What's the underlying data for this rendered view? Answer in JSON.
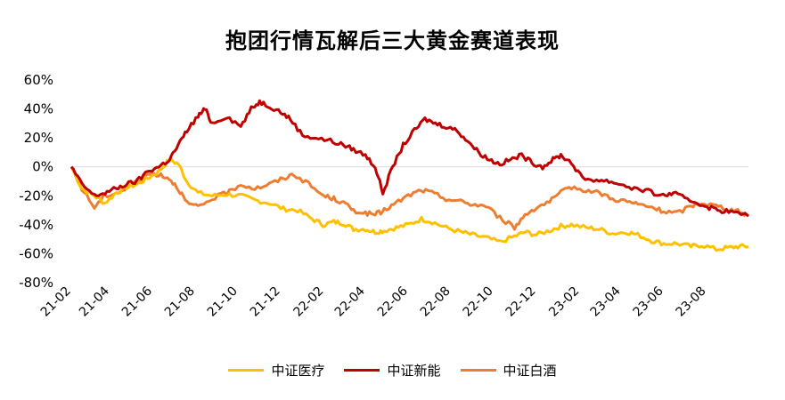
{
  "chart_data": {
    "type": "line",
    "title": "抱团行情瓦解后三大黄金赛道表现",
    "xlabel": "",
    "ylabel": "",
    "ylim": [
      -80,
      60
    ],
    "yticks": [
      60,
      40,
      20,
      0,
      -20,
      -40,
      -60,
      -80
    ],
    "ytick_labels": [
      "60%",
      "40%",
      "20%",
      "0%",
      "-20%",
      "-40%",
      "-60%",
      "-80%"
    ],
    "xticks": [
      "21-02",
      "21-04",
      "21-06",
      "21-08",
      "21-10",
      "21-12",
      "22-02",
      "22-04",
      "22-06",
      "22-08",
      "22-10",
      "22-12",
      "23-02",
      "23-04",
      "23-06",
      "23-08"
    ],
    "x_range": [
      "2021-02-05",
      "2023-09-30"
    ],
    "legend_position": "bottom",
    "grid": false,
    "series": [
      {
        "name": "中证医疗",
        "color": "#FFC000",
        "points": [
          [
            "2021-02-05",
            0
          ],
          [
            "2021-02-20",
            -15
          ],
          [
            "2021-03-10",
            -20
          ],
          [
            "2021-03-25",
            -25
          ],
          [
            "2021-04-10",
            -18
          ],
          [
            "2021-04-25",
            -14
          ],
          [
            "2021-05-10",
            -12
          ],
          [
            "2021-05-25",
            -8
          ],
          [
            "2021-06-10",
            -3
          ],
          [
            "2021-06-25",
            5
          ],
          [
            "2021-07-08",
            2
          ],
          [
            "2021-07-20",
            -10
          ],
          [
            "2021-08-05",
            -18
          ],
          [
            "2021-08-25",
            -20
          ],
          [
            "2021-09-15",
            -19
          ],
          [
            "2021-10-05",
            -20
          ],
          [
            "2021-10-25",
            -23
          ],
          [
            "2021-11-15",
            -25
          ],
          [
            "2021-12-05",
            -29
          ],
          [
            "2021-12-25",
            -30
          ],
          [
            "2022-01-15",
            -36
          ],
          [
            "2022-01-31",
            -40
          ],
          [
            "2022-02-15",
            -38
          ],
          [
            "2022-03-01",
            -39
          ],
          [
            "2022-03-15",
            -43
          ],
          [
            "2022-04-01",
            -43
          ],
          [
            "2022-04-15",
            -45
          ],
          [
            "2022-04-28",
            -44
          ],
          [
            "2022-05-15",
            -42
          ],
          [
            "2022-06-01",
            -40
          ],
          [
            "2022-06-20",
            -36
          ],
          [
            "2022-07-05",
            -38
          ],
          [
            "2022-07-25",
            -42
          ],
          [
            "2022-08-15",
            -45
          ],
          [
            "2022-09-01",
            -47
          ],
          [
            "2022-09-20",
            -49
          ],
          [
            "2022-10-10",
            -52
          ],
          [
            "2022-10-31",
            -48
          ],
          [
            "2022-11-15",
            -45
          ],
          [
            "2022-12-01",
            -47
          ],
          [
            "2022-12-20",
            -44
          ],
          [
            "2023-01-05",
            -41
          ],
          [
            "2023-01-20",
            -40
          ],
          [
            "2023-02-10",
            -42
          ],
          [
            "2023-03-01",
            -43
          ],
          [
            "2023-03-20",
            -46
          ],
          [
            "2023-04-10",
            -45
          ],
          [
            "2023-04-25",
            -47
          ],
          [
            "2023-05-15",
            -51
          ],
          [
            "2023-06-01",
            -53
          ],
          [
            "2023-06-20",
            -53
          ],
          [
            "2023-07-10",
            -55
          ],
          [
            "2023-07-25",
            -54
          ],
          [
            "2023-08-15",
            -57
          ],
          [
            "2023-08-31",
            -56
          ],
          [
            "2023-09-15",
            -55
          ],
          [
            "2023-09-30",
            -55
          ]
        ]
      },
      {
        "name": "中证新能",
        "color": "#C00000",
        "points": [
          [
            "2021-02-05",
            0
          ],
          [
            "2021-02-20",
            -12
          ],
          [
            "2021-03-10",
            -20
          ],
          [
            "2021-03-25",
            -18
          ],
          [
            "2021-04-10",
            -15
          ],
          [
            "2021-04-25",
            -12
          ],
          [
            "2021-05-10",
            -10
          ],
          [
            "2021-05-25",
            -3
          ],
          [
            "2021-06-10",
            0
          ],
          [
            "2021-06-25",
            5
          ],
          [
            "2021-07-08",
            15
          ],
          [
            "2021-07-20",
            25
          ],
          [
            "2021-08-05",
            35
          ],
          [
            "2021-08-15",
            40
          ],
          [
            "2021-08-25",
            30
          ],
          [
            "2021-09-15",
            35
          ],
          [
            "2021-10-05",
            28
          ],
          [
            "2021-10-20",
            40
          ],
          [
            "2021-11-01",
            45
          ],
          [
            "2021-11-15",
            42
          ],
          [
            "2021-12-01",
            38
          ],
          [
            "2021-12-15",
            33
          ],
          [
            "2022-01-01",
            22
          ],
          [
            "2022-01-20",
            20
          ],
          [
            "2022-02-10",
            18
          ],
          [
            "2022-03-01",
            15
          ],
          [
            "2022-03-15",
            12
          ],
          [
            "2022-04-01",
            8
          ],
          [
            "2022-04-15",
            0
          ],
          [
            "2022-04-26",
            -18
          ],
          [
            "2022-05-10",
            0
          ],
          [
            "2022-05-25",
            15
          ],
          [
            "2022-06-10",
            25
          ],
          [
            "2022-06-25",
            33
          ],
          [
            "2022-07-10",
            30
          ],
          [
            "2022-07-25",
            28
          ],
          [
            "2022-08-10",
            25
          ],
          [
            "2022-08-25",
            18
          ],
          [
            "2022-09-10",
            10
          ],
          [
            "2022-09-25",
            5
          ],
          [
            "2022-10-10",
            2
          ],
          [
            "2022-10-25",
            5
          ],
          [
            "2022-11-10",
            8
          ],
          [
            "2022-11-25",
            3
          ],
          [
            "2022-12-10",
            0
          ],
          [
            "2022-12-25",
            5
          ],
          [
            "2023-01-05",
            8
          ],
          [
            "2023-01-20",
            3
          ],
          [
            "2023-02-05",
            -8
          ],
          [
            "2023-02-25",
            -9
          ],
          [
            "2023-03-15",
            -10
          ],
          [
            "2023-04-01",
            -12
          ],
          [
            "2023-04-20",
            -15
          ],
          [
            "2023-05-10",
            -17
          ],
          [
            "2023-05-31",
            -20
          ],
          [
            "2023-06-15",
            -18
          ],
          [
            "2023-07-01",
            -22
          ],
          [
            "2023-07-20",
            -25
          ],
          [
            "2023-08-05",
            -28
          ],
          [
            "2023-08-20",
            -30
          ],
          [
            "2023-09-05",
            -31
          ],
          [
            "2023-09-30",
            -34
          ]
        ]
      },
      {
        "name": "中证白酒",
        "color": "#ED7D31",
        "points": [
          [
            "2021-02-05",
            0
          ],
          [
            "2021-02-20",
            -15
          ],
          [
            "2021-03-10",
            -28
          ],
          [
            "2021-03-25",
            -20
          ],
          [
            "2021-04-10",
            -18
          ],
          [
            "2021-04-25",
            -15
          ],
          [
            "2021-05-10",
            -10
          ],
          [
            "2021-05-25",
            -5
          ],
          [
            "2021-06-10",
            -5
          ],
          [
            "2021-06-25",
            -8
          ],
          [
            "2021-07-08",
            -15
          ],
          [
            "2021-07-20",
            -25
          ],
          [
            "2021-08-05",
            -28
          ],
          [
            "2021-08-25",
            -22
          ],
          [
            "2021-09-15",
            -18
          ],
          [
            "2021-10-05",
            -12
          ],
          [
            "2021-10-25",
            -15
          ],
          [
            "2021-11-15",
            -12
          ],
          [
            "2021-12-05",
            -8
          ],
          [
            "2021-12-20",
            -5
          ],
          [
            "2022-01-10",
            -12
          ],
          [
            "2022-01-31",
            -20
          ],
          [
            "2022-02-15",
            -22
          ],
          [
            "2022-03-01",
            -25
          ],
          [
            "2022-03-15",
            -30
          ],
          [
            "2022-04-01",
            -32
          ],
          [
            "2022-04-15",
            -33
          ],
          [
            "2022-04-28",
            -30
          ],
          [
            "2022-05-15",
            -25
          ],
          [
            "2022-06-01",
            -20
          ],
          [
            "2022-06-20",
            -16
          ],
          [
            "2022-07-05",
            -18
          ],
          [
            "2022-07-25",
            -22
          ],
          [
            "2022-08-15",
            -24
          ],
          [
            "2022-09-01",
            -26
          ],
          [
            "2022-09-20",
            -27
          ],
          [
            "2022-10-10",
            -35
          ],
          [
            "2022-10-31",
            -42
          ],
          [
            "2022-11-15",
            -33
          ],
          [
            "2022-12-01",
            -28
          ],
          [
            "2022-12-20",
            -24
          ],
          [
            "2023-01-05",
            -18
          ],
          [
            "2023-01-20",
            -14
          ],
          [
            "2023-02-10",
            -16
          ],
          [
            "2023-03-01",
            -18
          ],
          [
            "2023-03-20",
            -22
          ],
          [
            "2023-04-10",
            -24
          ],
          [
            "2023-04-25",
            -26
          ],
          [
            "2023-05-15",
            -28
          ],
          [
            "2023-06-01",
            -31
          ],
          [
            "2023-06-20",
            -32
          ],
          [
            "2023-07-10",
            -27
          ],
          [
            "2023-07-25",
            -25
          ],
          [
            "2023-08-15",
            -27
          ],
          [
            "2023-08-31",
            -29
          ],
          [
            "2023-09-15",
            -31
          ],
          [
            "2023-09-30",
            -34
          ]
        ]
      }
    ]
  }
}
